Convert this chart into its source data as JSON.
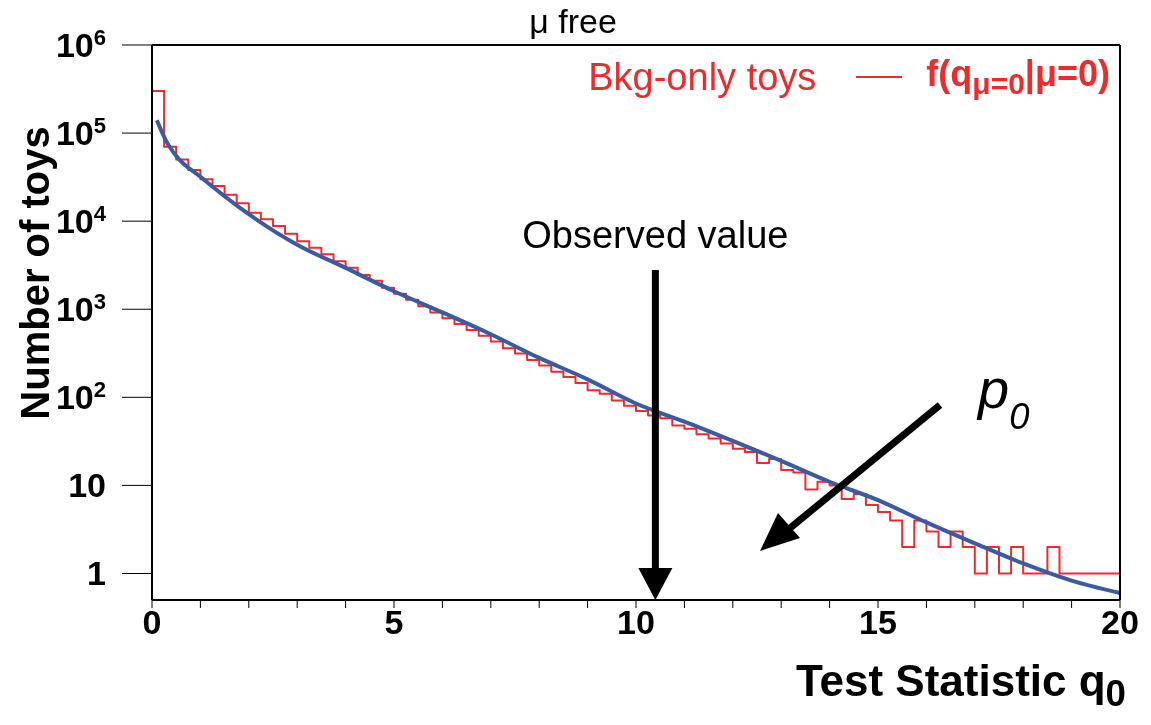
{
  "chart_data": {
    "type": "histogram",
    "title": "μ free",
    "xlabel": "Test Statistic q$_{0}$",
    "ylabel": "Number of toys",
    "legend_title": "Bkg-only toys",
    "legend": "top right",
    "log": "y",
    "annotations": [
      "Observed value",
      "p$_{0}$"
    ],
    "xlim": [
      0,
      20
    ],
    "ylim": [
      0.5,
      1000000
    ],
    "xticks": [
      0,
      {
        "value": 1,
        "label": null
      },
      {
        "value": 2,
        "label": null
      },
      {
        "value": 3,
        "label": null
      },
      {
        "value": 4,
        "label": null
      },
      5,
      {
        "value": 6,
        "label": null
      },
      {
        "value": 7,
        "label": null
      },
      {
        "value": 8,
        "label": null
      },
      {
        "value": 9,
        "label": null
      },
      10,
      {
        "value": 11,
        "label": null
      },
      {
        "value": 12,
        "label": null
      },
      {
        "value": 13,
        "label": null
      },
      {
        "value": 14,
        "label": null
      },
      15,
      {
        "value": 16,
        "label": null
      },
      {
        "value": 17,
        "label": null
      },
      {
        "value": 18,
        "label": null
      },
      {
        "value": 19,
        "label": null
      },
      20
    ],
    "yticks": [
      1,
      10,
      {
        "value": 100,
        "label": "10$^{2}$"
      },
      {
        "value": 1000,
        "label": "10$^{3}$"
      },
      {
        "value": 10000,
        "label": "10$^{4}$"
      },
      {
        "value": 100000,
        "label": "10$^{5}$"
      },
      {
        "value": 1000000,
        "label": "10$^{6}$"
      }
    ],
    "bins": [
      0,
      0.25,
      0.5,
      0.75,
      1,
      1.25,
      1.5,
      1.75,
      2,
      2.25,
      2.5,
      2.75,
      3,
      3.25,
      3.5,
      3.75,
      4,
      4.25,
      4.5,
      4.75,
      5,
      5.25,
      5.5,
      5.75,
      6,
      6.25,
      6.5,
      6.75,
      7,
      7.25,
      7.5,
      7.75,
      8,
      8.25,
      8.5,
      8.75,
      9,
      9.25,
      9.5,
      9.75,
      10,
      10.25,
      10.5,
      10.75,
      11,
      11.25,
      11.5,
      11.75,
      12,
      12.25,
      12.5,
      12.75,
      13,
      13.25,
      13.5,
      13.75,
      14,
      14.25,
      14.5,
      14.75,
      15,
      15.25,
      15.5,
      15.75,
      16,
      16.25,
      16.5,
      16.75,
      17,
      17.25,
      17.5,
      17.75,
      18,
      18.25,
      18.5,
      18.75,
      19,
      19.25,
      19.5,
      19.75,
      20
    ],
    "series": [
      {
        "name": "f(q$_{μ=0}$|μ=0)",
        "color": "#ee2a2a",
        "values": [
          300000,
          70000,
          50000,
          38000,
          30000,
          25000,
          20000,
          16000,
          12500,
          10500,
          8800,
          7200,
          5900,
          5000,
          4200,
          3500,
          2950,
          2450,
          2100,
          1750,
          1500,
          1280,
          1080,
          920,
          790,
          680,
          580,
          500,
          430,
          360,
          315,
          265,
          230,
          195,
          170,
          145,
          120,
          110,
          92,
          80,
          70,
          62,
          58,
          48,
          44,
          38,
          34,
          30,
          26,
          24,
          18,
          20,
          15,
          14,
          9,
          11,
          10,
          7,
          8,
          6,
          5,
          4,
          2,
          4,
          3,
          2,
          3,
          2,
          1,
          2,
          1,
          2,
          1,
          1,
          2,
          1,
          1,
          1,
          1,
          1
        ]
      },
      {
        "type": "line",
        "color": "#3a5ba0",
        "x": [
          0.1,
          0.3,
          0.5,
          1,
          2,
          3,
          4,
          5,
          6,
          7,
          8,
          9,
          10,
          11,
          12,
          13,
          14,
          15,
          16,
          17,
          18,
          19,
          20
        ],
        "values": [
          140000,
          80000,
          55000,
          32000,
          12000,
          5400,
          2950,
          1600,
          920,
          520,
          280,
          160,
          85,
          53,
          32,
          19,
          11,
          6.8,
          3.8,
          2.2,
          1.3,
          0.83,
          0.6
        ]
      }
    ]
  }
}
